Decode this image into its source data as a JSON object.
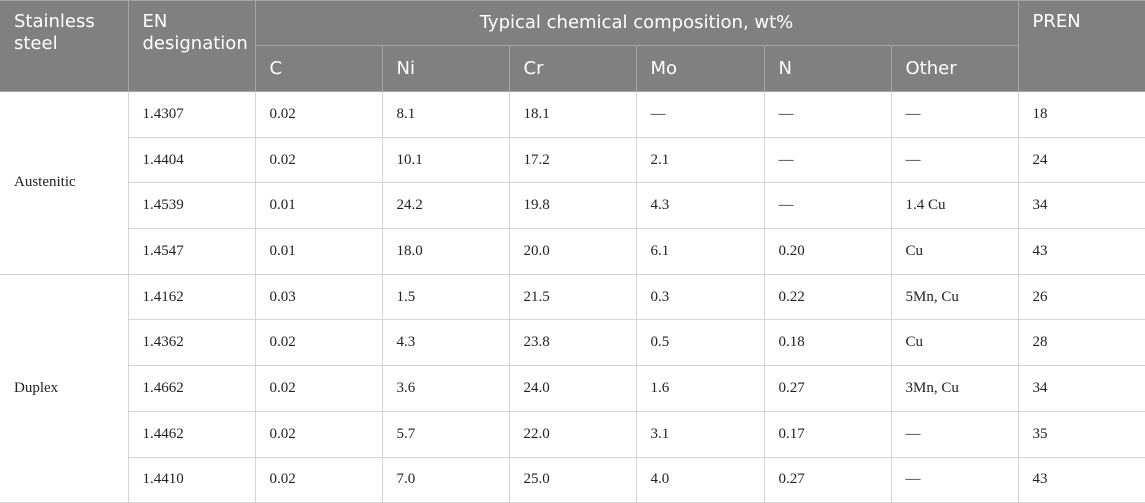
{
  "table": {
    "header": {
      "steel": "Stainless steel",
      "en": "EN designation",
      "composition": "Typical chemical composition, wt%",
      "pren": "PREN",
      "elements": [
        "C",
        "Ni",
        "Cr",
        "Mo",
        "N",
        "Other"
      ]
    },
    "groups": [
      {
        "name": "Austenitic",
        "rows": [
          [
            "1.4307",
            "0.02",
            "8.1",
            "18.1",
            "—",
            "—",
            "—",
            "18"
          ],
          [
            "1.4404",
            "0.02",
            "10.1",
            "17.2",
            "2.1",
            "—",
            "—",
            "24"
          ],
          [
            "1.4539",
            "0.01",
            "24.2",
            "19.8",
            "4.3",
            "—",
            "1.4 Cu",
            "34"
          ],
          [
            "1.4547",
            "0.01",
            "18.0",
            "20.0",
            "6.1",
            "0.20",
            "Cu",
            "43"
          ]
        ]
      },
      {
        "name": "Duplex",
        "rows": [
          [
            "1.4162",
            "0.03",
            "1.5",
            "21.5",
            "0.3",
            "0.22",
            "5Mn, Cu",
            "26"
          ],
          [
            "1.4362",
            "0.02",
            "4.3",
            "23.8",
            "0.5",
            "0.18",
            "Cu",
            "28"
          ],
          [
            "1.4662",
            "0.02",
            "3.6",
            "24.0",
            "1.6",
            "0.27",
            "3Mn, Cu",
            "34"
          ],
          [
            "1.4462",
            "0.02",
            "5.7",
            "22.0",
            "3.1",
            "0.17",
            "—",
            "35"
          ],
          [
            "1.4410",
            "0.02",
            "7.0",
            "25.0",
            "4.0",
            "0.27",
            "—",
            "43"
          ]
        ]
      }
    ]
  }
}
